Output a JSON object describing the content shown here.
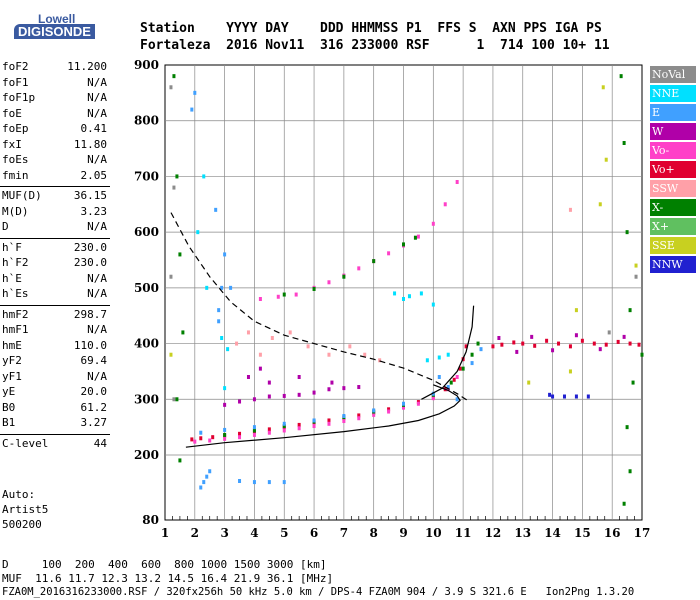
{
  "logo": {
    "line1": "Lowell",
    "line2": "DIGISONDE"
  },
  "header": {
    "labels": "Station    YYYY DAY    DDD HHMMSS P1  FFS S  AXN PPS IGA PS",
    "values": "Fortaleza  2016 Nov11  316 233000 RSF      1  714 100 10+ 11"
  },
  "params": [
    {
      "name": "foF2",
      "value": "11.200"
    },
    {
      "name": "foF1",
      "value": "N/A"
    },
    {
      "name": "foF1p",
      "value": "N/A"
    },
    {
      "name": "foE",
      "value": "N/A"
    },
    {
      "name": "foEp",
      "value": "0.41"
    },
    {
      "name": "fxI",
      "value": "11.80"
    },
    {
      "name": "foEs",
      "value": "N/A"
    },
    {
      "name": "fmin",
      "value": "2.05"
    },
    {
      "name": "MUF(D)",
      "value": "36.15"
    },
    {
      "name": "M(D)",
      "value": "3.23"
    },
    {
      "name": "D",
      "value": "N/A"
    },
    {
      "name": "h`F",
      "value": "230.0"
    },
    {
      "name": "h`F2",
      "value": "230.0"
    },
    {
      "name": "h`E",
      "value": "N/A"
    },
    {
      "name": "h`Es",
      "value": "N/A"
    },
    {
      "name": "hmF2",
      "value": "298.7"
    },
    {
      "name": "hmF1",
      "value": "N/A"
    },
    {
      "name": "hmE",
      "value": "110.0"
    },
    {
      "name": "yF2",
      "value": "69.4"
    },
    {
      "name": "yF1",
      "value": "N/A"
    },
    {
      "name": "yE",
      "value": "20.0"
    },
    {
      "name": "B0",
      "value": "61.2"
    },
    {
      "name": "B1",
      "value": "3.27"
    },
    {
      "name": "C-level",
      "value": "44"
    }
  ],
  "auto": {
    "line1": "Auto:",
    "line2": "Artist5",
    "line3": "500200"
  },
  "legend": [
    {
      "label": "NoVal",
      "color": "#8c8c8c"
    },
    {
      "label": "NNE",
      "color": "#00e0ff"
    },
    {
      "label": "E",
      "color": "#40a0ff"
    },
    {
      "label": "W",
      "color": "#b000a8"
    },
    {
      "label": "Vo-",
      "color": "#ff40c8"
    },
    {
      "label": "Vo+",
      "color": "#e00030"
    },
    {
      "label": "SSW",
      "color": "#ffa0a8"
    },
    {
      "label": "X-",
      "color": "#008000"
    },
    {
      "label": "X+",
      "color": "#60c060"
    },
    {
      "label": "SSE",
      "color": "#c8d020"
    },
    {
      "label": "NNW",
      "color": "#2020d0"
    }
  ],
  "footer": {
    "d_row": "D     100  200  400  600  800 1000 1500 3000 [km]",
    "muf_row": "MUF  11.6 11.7 12.3 13.2 14.5 16.4 21.9 36.1 [MHz]",
    "file_row": "FZA0M_2016316233000.RSF / 320fx256h 50 kHz 5.0 km / DPS-4 FZA0M 904 / 3.9 S 321.6 E   Ion2Png 1.3.20"
  },
  "chart_data": {
    "type": "scatter",
    "xlim": [
      1,
      17
    ],
    "ylim": [
      80,
      900
    ],
    "x_ticks": [
      1,
      2,
      3,
      4,
      5,
      6,
      7,
      8,
      9,
      10,
      11,
      12,
      13,
      14,
      15,
      16,
      17
    ],
    "y_ticks": [
      80,
      200,
      300,
      400,
      500,
      600,
      700,
      800,
      900
    ],
    "grid": true,
    "legend_position": "right",
    "series": [
      {
        "legend_index": 5,
        "points": [
          [
            1.9,
            228
          ],
          [
            2.2,
            230
          ],
          [
            2.6,
            232
          ],
          [
            3.0,
            235
          ],
          [
            3.5,
            238
          ],
          [
            4.0,
            242
          ],
          [
            4.5,
            246
          ],
          [
            5.0,
            250
          ],
          [
            5.5,
            254
          ],
          [
            6.0,
            258
          ],
          [
            6.5,
            262
          ],
          [
            7.0,
            266
          ],
          [
            7.5,
            271
          ],
          [
            8.0,
            276
          ],
          [
            8.5,
            282
          ],
          [
            9.0,
            288
          ],
          [
            9.5,
            295
          ],
          [
            10.0,
            305
          ],
          [
            10.4,
            318
          ],
          [
            10.7,
            335
          ],
          [
            10.9,
            355
          ],
          [
            11.0,
            372
          ],
          [
            11.1,
            395
          ]
        ]
      },
      {
        "legend_index": 4,
        "points": [
          [
            2.0,
            224
          ],
          [
            2.5,
            226
          ],
          [
            3.0,
            229
          ],
          [
            3.5,
            232
          ],
          [
            4.0,
            236
          ],
          [
            4.5,
            240
          ],
          [
            5.0,
            244
          ],
          [
            5.5,
            248
          ],
          [
            6.0,
            252
          ],
          [
            6.5,
            256
          ],
          [
            7.0,
            261
          ],
          [
            7.5,
            266
          ],
          [
            8.0,
            272
          ],
          [
            8.5,
            278
          ],
          [
            9.0,
            285
          ],
          [
            9.5,
            292
          ],
          [
            10.0,
            302
          ],
          [
            10.5,
            318
          ],
          [
            10.8,
            340
          ]
        ]
      },
      {
        "legend_index": 7,
        "points": [
          [
            3.0,
            236
          ],
          [
            4.0,
            244
          ],
          [
            5.0,
            252
          ],
          [
            6.0,
            260
          ],
          [
            7.0,
            268
          ],
          [
            8.0,
            278
          ],
          [
            9.0,
            290
          ],
          [
            10.0,
            308
          ],
          [
            10.6,
            330
          ],
          [
            11.0,
            355
          ],
          [
            11.3,
            380
          ],
          [
            11.5,
            400
          ]
        ]
      },
      {
        "legend_index": 2,
        "points": [
          [
            2.2,
            240
          ],
          [
            3.0,
            245
          ],
          [
            4.0,
            250
          ],
          [
            5.0,
            256
          ],
          [
            6.0,
            262
          ],
          [
            7.0,
            270
          ],
          [
            8.0,
            280
          ],
          [
            9.0,
            292
          ],
          [
            10.0,
            310
          ],
          [
            10.5,
            322
          ],
          [
            10.8,
            300
          ],
          [
            10.2,
            340
          ],
          [
            11.3,
            365
          ],
          [
            11.6,
            390
          ]
        ]
      },
      {
        "legend_index": 3,
        "points": [
          [
            3.0,
            290
          ],
          [
            3.5,
            296
          ],
          [
            4.0,
            300
          ],
          [
            4.5,
            305
          ],
          [
            5.0,
            306
          ],
          [
            5.5,
            308
          ],
          [
            6.0,
            312
          ],
          [
            6.5,
            318
          ],
          [
            7.0,
            320
          ],
          [
            7.5,
            322
          ],
          [
            3.8,
            340
          ],
          [
            4.2,
            355
          ],
          [
            4.5,
            330
          ],
          [
            5.5,
            340
          ],
          [
            6.6,
            330
          ]
        ]
      },
      {
        "legend_index": 4,
        "points": [
          [
            4.2,
            480
          ],
          [
            4.8,
            484
          ],
          [
            5.4,
            488
          ],
          [
            6.0,
            500
          ],
          [
            6.5,
            510
          ],
          [
            7.0,
            522
          ],
          [
            7.5,
            535
          ],
          [
            8.0,
            548
          ],
          [
            8.5,
            562
          ],
          [
            9.0,
            576
          ],
          [
            9.5,
            592
          ],
          [
            10.0,
            615
          ],
          [
            10.4,
            650
          ],
          [
            10.8,
            690
          ]
        ]
      },
      {
        "legend_index": 7,
        "points": [
          [
            5.0,
            488
          ],
          [
            6.0,
            498
          ],
          [
            7.0,
            520
          ],
          [
            8.0,
            548
          ],
          [
            9.0,
            578
          ],
          [
            9.4,
            590
          ]
        ]
      },
      {
        "legend_index": 5,
        "points": [
          [
            12.0,
            395
          ],
          [
            12.3,
            398
          ],
          [
            12.7,
            402
          ],
          [
            13.0,
            400
          ],
          [
            13.4,
            396
          ],
          [
            13.8,
            405
          ],
          [
            14.2,
            400
          ],
          [
            14.6,
            395
          ],
          [
            15.0,
            405
          ],
          [
            15.4,
            400
          ],
          [
            15.8,
            398
          ],
          [
            16.2,
            403
          ],
          [
            16.6,
            400
          ],
          [
            16.9,
            398
          ]
        ]
      },
      {
        "legend_index": 3,
        "points": [
          [
            12.2,
            410
          ],
          [
            12.8,
            385
          ],
          [
            13.3,
            412
          ],
          [
            14.0,
            388
          ],
          [
            14.8,
            415
          ],
          [
            15.6,
            390
          ],
          [
            16.4,
            412
          ]
        ]
      },
      {
        "legend_index": 10,
        "points": [
          [
            14.0,
            305
          ],
          [
            14.4,
            305
          ],
          [
            14.8,
            305
          ],
          [
            15.2,
            305
          ],
          [
            13.9,
            308
          ]
        ]
      },
      {
        "legend_index": 1,
        "points": [
          [
            9.0,
            480
          ],
          [
            9.2,
            485
          ],
          [
            9.6,
            490
          ],
          [
            10.0,
            470
          ],
          [
            8.7,
            490
          ],
          [
            9.8,
            370
          ],
          [
            10.2,
            375
          ],
          [
            10.5,
            380
          ]
        ]
      },
      {
        "legend_index": 2,
        "points": [
          [
            2.2,
            140
          ],
          [
            2.3,
            150
          ],
          [
            2.4,
            160
          ],
          [
            2.5,
            170
          ],
          [
            4.0,
            150
          ],
          [
            4.5,
            150
          ],
          [
            5.0,
            150
          ],
          [
            3.5,
            152
          ],
          [
            2.8,
            460
          ],
          [
            2.9,
            500
          ],
          [
            3.0,
            560
          ],
          [
            2.7,
            640
          ],
          [
            3.2,
            500
          ],
          [
            2.8,
            440
          ],
          [
            1.9,
            820
          ],
          [
            2.0,
            850
          ]
        ]
      },
      {
        "legend_index": 1,
        "points": [
          [
            2.1,
            600
          ],
          [
            2.4,
            500
          ],
          [
            2.9,
            410
          ],
          [
            3.1,
            390
          ],
          [
            2.3,
            700
          ],
          [
            3.0,
            320
          ]
        ]
      },
      {
        "legend_index": 6,
        "points": [
          [
            3.4,
            400
          ],
          [
            3.8,
            420
          ],
          [
            4.2,
            380
          ],
          [
            4.6,
            410
          ],
          [
            5.2,
            420
          ],
          [
            5.8,
            395
          ],
          [
            6.5,
            380
          ],
          [
            7.2,
            395
          ],
          [
            7.7,
            380
          ],
          [
            8.2,
            370
          ],
          [
            14.6,
            640
          ]
        ]
      },
      {
        "legend_index": 7,
        "points": [
          [
            1.3,
            880
          ],
          [
            1.4,
            700
          ],
          [
            1.5,
            560
          ],
          [
            1.6,
            420
          ],
          [
            1.4,
            300
          ],
          [
            1.5,
            190
          ],
          [
            16.3,
            880
          ],
          [
            16.4,
            760
          ],
          [
            16.5,
            600
          ],
          [
            16.6,
            460
          ],
          [
            16.7,
            330
          ],
          [
            16.5,
            250
          ],
          [
            16.6,
            170
          ],
          [
            16.4,
            110
          ],
          [
            17.0,
            380
          ]
        ]
      },
      {
        "legend_index": 9,
        "points": [
          [
            15.7,
            860
          ],
          [
            15.8,
            730
          ],
          [
            15.6,
            650
          ],
          [
            16.8,
            540
          ],
          [
            14.6,
            350
          ],
          [
            14.8,
            460
          ],
          [
            13.2,
            330
          ],
          [
            1.2,
            380
          ]
        ]
      },
      {
        "legend_index": 0,
        "points": [
          [
            1.2,
            860
          ],
          [
            1.3,
            680
          ],
          [
            1.2,
            520
          ],
          [
            1.3,
            300
          ],
          [
            15.9,
            420
          ],
          [
            16.8,
            520
          ]
        ]
      }
    ],
    "curves": [
      {
        "style": "solid",
        "color": "#000000",
        "points": [
          [
            1.7,
            214
          ],
          [
            3,
            222
          ],
          [
            5,
            231
          ],
          [
            7,
            242
          ],
          [
            8.5,
            252
          ],
          [
            9.5,
            262
          ],
          [
            10.2,
            274
          ],
          [
            10.7,
            288
          ],
          [
            10.9,
            298
          ],
          [
            10.8,
            306
          ],
          [
            10.5,
            316
          ],
          [
            10.0,
            326
          ]
        ]
      },
      {
        "style": "solid",
        "color": "#000000",
        "points": [
          [
            9.6,
            300
          ],
          [
            10.3,
            320
          ],
          [
            10.8,
            350
          ],
          [
            11.1,
            385
          ],
          [
            11.3,
            430
          ],
          [
            11.35,
            468
          ]
        ]
      },
      {
        "style": "dashed",
        "color": "#000000",
        "points": [
          [
            1.2,
            635
          ],
          [
            1.8,
            575
          ],
          [
            2.5,
            520
          ],
          [
            3.2,
            475
          ],
          [
            4.0,
            440
          ],
          [
            5.0,
            415
          ],
          [
            6.0,
            400
          ],
          [
            7.0,
            385
          ],
          [
            8.0,
            372
          ],
          [
            9.0,
            356
          ],
          [
            10.0,
            334
          ],
          [
            10.8,
            310
          ],
          [
            11.2,
            296
          ]
        ]
      }
    ]
  }
}
